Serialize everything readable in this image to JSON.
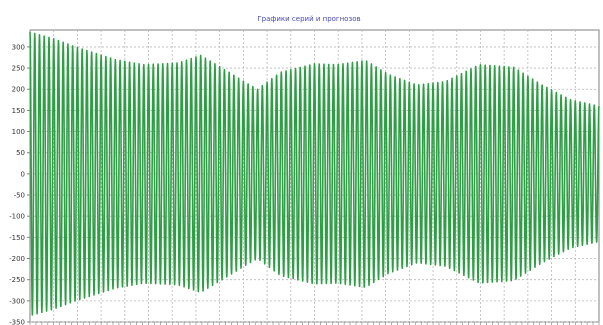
{
  "window": {
    "title": "Графики серий и прогнозов"
  },
  "colors": {
    "series": "#2e9e45",
    "series_dark": "#1f7a33",
    "grid": "#b8b8b8",
    "axis": "#808080",
    "title": "#4a4ab8",
    "tick_text": "#333333",
    "plot_bg": "#ffffff"
  },
  "chart_data": {
    "type": "line",
    "title": "Графики серий и прогнозов",
    "xlabel": "",
    "ylabel": "",
    "ylim": [
      -350,
      340
    ],
    "yticks": [
      -350,
      -300,
      -250,
      -200,
      -150,
      -100,
      -50,
      0,
      50,
      100,
      150,
      200,
      250,
      300
    ],
    "ytick_labels": [
      "-350",
      "-300",
      "-250",
      "-200",
      "-150",
      "-100",
      "-50",
      "0",
      "50",
      "100",
      "150",
      "200",
      "250",
      "300"
    ],
    "x_ticks_labeled": false,
    "x_gridline_count": 24,
    "grid": true,
    "legend": "none",
    "series": [
      {
        "cycles": 120,
        "envelope": [
          {
            "x": 0.0,
            "amplitude": 335
          },
          {
            "x": 0.04,
            "amplitude": 320
          },
          {
            "x": 0.08,
            "amplitude": 300
          },
          {
            "x": 0.15,
            "amplitude": 270
          },
          {
            "x": 0.2,
            "amplitude": 258
          },
          {
            "x": 0.26,
            "amplitude": 262
          },
          {
            "x": 0.3,
            "amplitude": 280
          },
          {
            "x": 0.35,
            "amplitude": 240
          },
          {
            "x": 0.38,
            "amplitude": 215
          },
          {
            "x": 0.4,
            "amplitude": 200
          },
          {
            "x": 0.44,
            "amplitude": 240
          },
          {
            "x": 0.5,
            "amplitude": 260
          },
          {
            "x": 0.54,
            "amplitude": 258
          },
          {
            "x": 0.59,
            "amplitude": 268
          },
          {
            "x": 0.63,
            "amplitude": 235
          },
          {
            "x": 0.68,
            "amplitude": 210
          },
          {
            "x": 0.73,
            "amplitude": 218
          },
          {
            "x": 0.79,
            "amplitude": 258
          },
          {
            "x": 0.85,
            "amplitude": 252
          },
          {
            "x": 0.9,
            "amplitude": 210
          },
          {
            "x": 0.95,
            "amplitude": 175
          },
          {
            "x": 1.0,
            "amplitude": 160
          }
        ]
      }
    ]
  }
}
